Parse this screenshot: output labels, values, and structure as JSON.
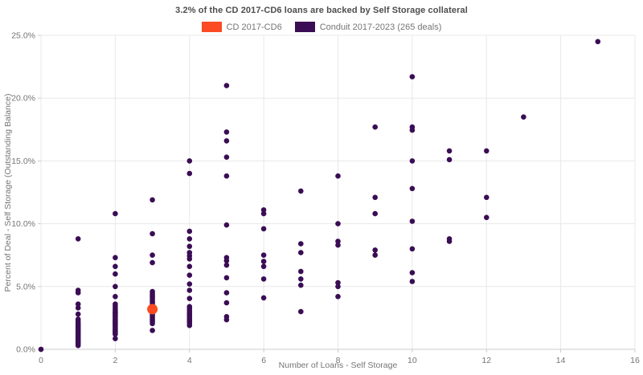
{
  "header": {
    "title": "3.2% of the CD 2017-CD6 loans are backed by Self Storage collateral"
  },
  "legend": {
    "items": [
      {
        "label": "CD 2017-CD6",
        "color": "#fb4b23"
      },
      {
        "label": "Conduit 2017-2023 (265 deals)",
        "color": "#3a0d54"
      }
    ]
  },
  "axes": {
    "x_label": "Number of Loans - Self Storage",
    "y_label": "Percent of Deal - Self Storage (Outstanding Balance)"
  },
  "chart_data": {
    "type": "scatter",
    "title": "3.2% of the CD 2017-CD6 loans are backed by Self Storage collateral",
    "xlabel": "Number of Loans - Self Storage",
    "ylabel": "Percent of Deal - Self Storage (Outstanding Balance)",
    "xlim": [
      0,
      16
    ],
    "ylim": [
      0,
      25
    ],
    "x_ticks": [
      0,
      2,
      4,
      6,
      8,
      10,
      12,
      14,
      16
    ],
    "y_ticks": [
      0,
      5,
      10,
      15,
      20,
      25
    ],
    "y_tick_suffix": "%",
    "grid": true,
    "legend_position": "top-center",
    "colors": {
      "grid": "#e8e8e8",
      "axis": "#cccccc",
      "tick": "#cccccc",
      "tick_text": "#757575"
    },
    "series": [
      {
        "name": "Conduit 2017-2023 (265 deals)",
        "color": "#3a0d54",
        "marker_radius": 3.3,
        "points": [
          [
            0,
            0
          ],
          [
            1,
            8.8
          ],
          [
            1,
            4.7
          ],
          [
            1,
            4.5
          ],
          [
            1,
            3.6
          ],
          [
            1,
            3.3
          ],
          [
            1,
            2.8
          ],
          [
            1,
            2.4
          ],
          [
            1,
            2.25
          ],
          [
            1,
            2.1
          ],
          [
            1,
            2.0
          ],
          [
            1,
            1.9
          ],
          [
            1,
            1.8
          ],
          [
            1,
            1.7
          ],
          [
            1,
            1.6
          ],
          [
            1,
            1.5
          ],
          [
            1,
            1.4
          ],
          [
            1,
            1.3
          ],
          [
            1,
            1.2
          ],
          [
            1,
            1.1
          ],
          [
            1,
            1.0
          ],
          [
            1,
            0.9
          ],
          [
            1,
            0.8
          ],
          [
            1,
            0.7
          ],
          [
            1,
            0.6
          ],
          [
            1,
            0.5
          ],
          [
            1,
            0.4
          ],
          [
            1,
            0.3
          ],
          [
            2,
            10.8
          ],
          [
            2,
            7.3
          ],
          [
            2,
            6.6
          ],
          [
            2,
            6.0
          ],
          [
            2,
            5.0
          ],
          [
            2,
            4.2
          ],
          [
            2,
            3.6
          ],
          [
            2,
            3.45
          ],
          [
            2,
            3.3
          ],
          [
            2,
            3.15
          ],
          [
            2,
            3.0
          ],
          [
            2,
            2.9
          ],
          [
            2,
            2.8
          ],
          [
            2,
            2.7
          ],
          [
            2,
            2.6
          ],
          [
            2,
            2.5
          ],
          [
            2,
            2.4
          ],
          [
            2,
            2.3
          ],
          [
            2,
            2.2
          ],
          [
            2,
            2.1
          ],
          [
            2,
            2.0
          ],
          [
            2,
            1.9
          ],
          [
            2,
            1.8
          ],
          [
            2,
            1.7
          ],
          [
            2,
            1.6
          ],
          [
            2,
            1.5
          ],
          [
            2,
            1.4
          ],
          [
            2,
            1.3
          ],
          [
            2,
            1.2
          ],
          [
            2,
            0.85
          ],
          [
            3,
            11.9
          ],
          [
            3,
            9.2
          ],
          [
            3,
            7.5
          ],
          [
            3,
            6.9
          ],
          [
            3,
            4.6
          ],
          [
            3,
            4.45
          ],
          [
            3,
            4.3
          ],
          [
            3,
            4.15
          ],
          [
            3,
            4.0
          ],
          [
            3,
            3.85
          ],
          [
            3,
            3.7
          ],
          [
            3,
            3.55
          ],
          [
            3,
            3.4
          ],
          [
            3,
            3.25
          ],
          [
            3,
            3.1
          ],
          [
            3,
            2.95
          ],
          [
            3,
            2.8
          ],
          [
            3,
            2.65
          ],
          [
            3,
            2.5
          ],
          [
            3,
            2.35
          ],
          [
            3,
            2.2
          ],
          [
            3,
            2.05
          ],
          [
            3,
            1.5
          ],
          [
            4,
            15.0
          ],
          [
            4,
            14.0
          ],
          [
            4,
            9.4
          ],
          [
            4,
            8.8
          ],
          [
            4,
            8.2
          ],
          [
            4,
            7.7
          ],
          [
            4,
            7.45
          ],
          [
            4,
            7.2
          ],
          [
            4,
            6.6
          ],
          [
            4,
            5.9
          ],
          [
            4,
            5.2
          ],
          [
            4,
            4.7
          ],
          [
            4,
            4.05
          ],
          [
            4,
            3.4
          ],
          [
            4,
            3.25
          ],
          [
            4,
            3.1
          ],
          [
            4,
            2.95
          ],
          [
            4,
            2.8
          ],
          [
            4,
            2.65
          ],
          [
            4,
            2.5
          ],
          [
            4,
            2.35
          ],
          [
            4,
            2.2
          ],
          [
            4,
            2.05
          ],
          [
            4,
            1.9
          ],
          [
            5,
            21.0
          ],
          [
            5,
            17.3
          ],
          [
            5,
            16.6
          ],
          [
            5,
            15.3
          ],
          [
            5,
            13.8
          ],
          [
            5,
            9.9
          ],
          [
            5,
            7.3
          ],
          [
            5,
            7.05
          ],
          [
            5,
            6.7
          ],
          [
            5,
            5.7
          ],
          [
            5,
            4.5
          ],
          [
            5,
            3.7
          ],
          [
            5,
            2.6
          ],
          [
            5,
            2.35
          ],
          [
            6,
            11.1
          ],
          [
            6,
            10.8
          ],
          [
            6,
            9.6
          ],
          [
            6,
            7.5
          ],
          [
            6,
            7.0
          ],
          [
            6,
            6.6
          ],
          [
            6,
            5.6
          ],
          [
            6,
            4.1
          ],
          [
            7,
            12.6
          ],
          [
            7,
            8.4
          ],
          [
            7,
            7.7
          ],
          [
            7,
            6.2
          ],
          [
            7,
            5.6
          ],
          [
            7,
            5.1
          ],
          [
            7,
            3.0
          ],
          [
            8,
            13.8
          ],
          [
            8,
            10.0
          ],
          [
            8,
            8.6
          ],
          [
            8,
            8.3
          ],
          [
            8,
            5.3
          ],
          [
            8,
            5.0
          ],
          [
            8,
            4.2
          ],
          [
            9,
            17.7
          ],
          [
            9,
            12.1
          ],
          [
            9,
            10.8
          ],
          [
            9,
            7.9
          ],
          [
            9,
            7.5
          ],
          [
            10,
            21.7
          ],
          [
            10,
            17.7
          ],
          [
            10,
            17.45
          ],
          [
            10,
            15.0
          ],
          [
            10,
            12.8
          ],
          [
            10,
            10.2
          ],
          [
            10,
            8.0
          ],
          [
            10,
            6.1
          ],
          [
            10,
            5.4
          ],
          [
            11,
            15.8
          ],
          [
            11,
            15.1
          ],
          [
            11,
            8.8
          ],
          [
            11,
            8.6
          ],
          [
            12,
            15.8
          ],
          [
            12,
            12.1
          ],
          [
            12,
            10.5
          ],
          [
            13,
            18.5
          ],
          [
            15,
            24.5
          ]
        ]
      },
      {
        "name": "CD 2017-CD6",
        "color": "#fb4b23",
        "marker_radius": 6.5,
        "points": [
          [
            3,
            3.2
          ]
        ]
      }
    ]
  }
}
